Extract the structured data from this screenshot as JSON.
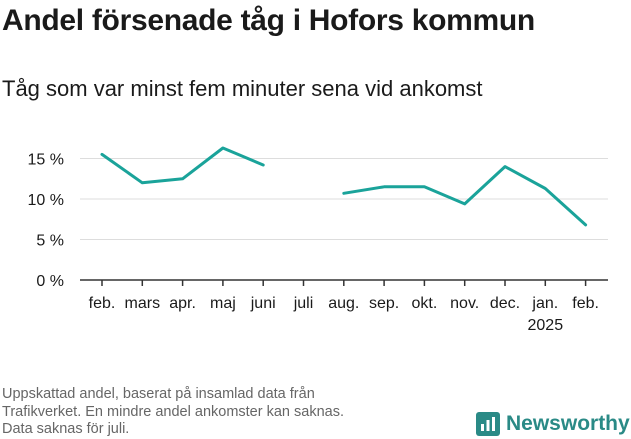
{
  "title": "Andel försenade tåg i Hofors kommun",
  "subtitle": "Tåg som var minst fem minuter sena vid ankomst",
  "footnote": [
    "Uppskattad andel, baserat på insamlad data från",
    "Trafikverket. En mindre andel ankomster kan saknas.",
    "Data saknas för juli."
  ],
  "brand": {
    "name": "Newsworthy",
    "icon": "newsworthy-logo-icon",
    "color": "#2a8a86"
  },
  "chart_data": {
    "type": "line",
    "categories": [
      "feb.",
      "mars",
      "apr.",
      "maj",
      "juni",
      "juli",
      "aug.",
      "sep.",
      "okt.",
      "nov.",
      "dec.",
      "jan.",
      "feb."
    ],
    "year_label": "2025",
    "year_label_under": 11,
    "series": [
      {
        "values": [
          15.5,
          12.0,
          12.5,
          16.3,
          14.2,
          null,
          10.7,
          11.5,
          11.5,
          9.4,
          14.0,
          11.3,
          6.8
        ]
      }
    ],
    "yticks": [
      0,
      5,
      10,
      15
    ],
    "ytick_labels": [
      "0 %",
      "5 %",
      "10 %",
      "15 %"
    ],
    "ylim": [
      0,
      17.5
    ],
    "grid": true,
    "line_color": "#1aa39a",
    "grid_color": "#dddddd",
    "axis_color": "#333333"
  }
}
